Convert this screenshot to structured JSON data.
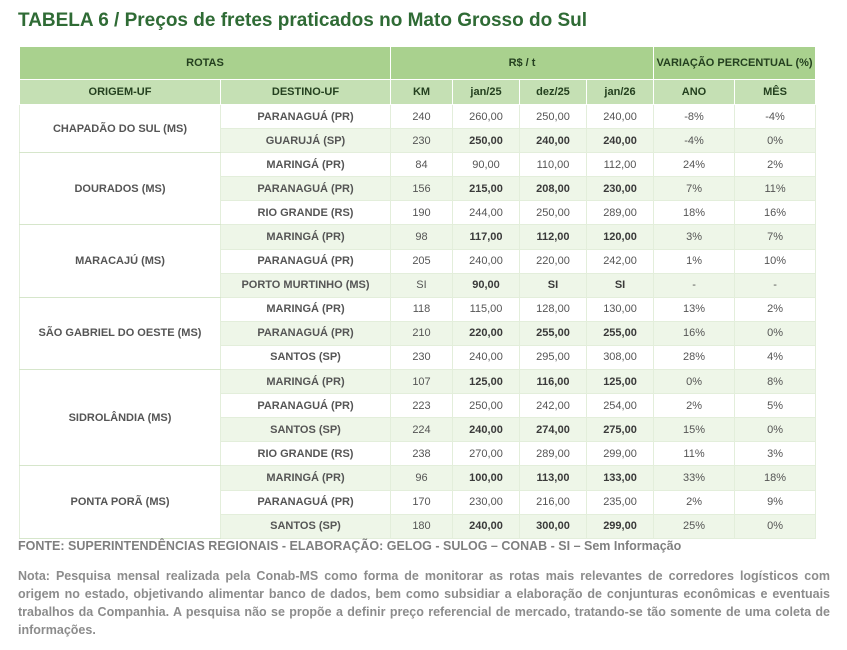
{
  "title": "TABELA 6 / Preços de fretes praticados no Mato Grosso do Sul",
  "header": {
    "rotas": "ROTAS",
    "rs_t": "R$ / t",
    "variacao": "VARIAÇÃO PERCENTUAL (%)",
    "columns": [
      "ORIGEM-UF",
      "DESTINO-UF",
      "KM",
      "jan/25",
      "dez/25",
      "jan/26",
      "ANO",
      "MÊS"
    ]
  },
  "groups": [
    {
      "origem": "CHAPADÃO DO SUL (MS)",
      "rows": [
        {
          "destino": "PARANAGUÁ (PR)",
          "km": "240",
          "jan25": "260,00",
          "dez25": "250,00",
          "jan26": "240,00",
          "ano": "-8%",
          "mes": "-4%"
        },
        {
          "destino": "GUARUJÁ (SP)",
          "km": "230",
          "jan25": "250,00",
          "dez25": "240,00",
          "jan26": "240,00",
          "ano": "-4%",
          "mes": "0%"
        }
      ]
    },
    {
      "origem": "DOURADOS (MS)",
      "rows": [
        {
          "destino": "MARINGÁ (PR)",
          "km": "84",
          "jan25": "90,00",
          "dez25": "110,00",
          "jan26": "112,00",
          "ano": "24%",
          "mes": "2%"
        },
        {
          "destino": "PARANAGUÁ (PR)",
          "km": "156",
          "jan25": "215,00",
          "dez25": "208,00",
          "jan26": "230,00",
          "ano": "7%",
          "mes": "11%"
        },
        {
          "destino": "RIO GRANDE (RS)",
          "km": "190",
          "jan25": "244,00",
          "dez25": "250,00",
          "jan26": "289,00",
          "ano": "18%",
          "mes": "16%"
        }
      ]
    },
    {
      "origem": "MARACAJÚ (MS)",
      "rows": [
        {
          "destino": "MARINGÁ (PR)",
          "km": "98",
          "jan25": "117,00",
          "dez25": "112,00",
          "jan26": "120,00",
          "ano": "3%",
          "mes": "7%"
        },
        {
          "destino": "PARANAGUÁ (PR)",
          "km": "205",
          "jan25": "240,00",
          "dez25": "220,00",
          "jan26": "242,00",
          "ano": "1%",
          "mes": "10%"
        },
        {
          "destino": "PORTO MURTINHO (MS)",
          "km": "SI",
          "jan25": "90,00",
          "dez25": "SI",
          "jan26": "SI",
          "ano": "-",
          "mes": "-"
        }
      ]
    },
    {
      "origem": "SÃO GABRIEL DO OESTE (MS)",
      "rows": [
        {
          "destino": "MARINGÁ (PR)",
          "km": "118",
          "jan25": "115,00",
          "dez25": "128,00",
          "jan26": "130,00",
          "ano": "13%",
          "mes": "2%"
        },
        {
          "destino": "PARANAGUÁ (PR)",
          "km": "210",
          "jan25": "220,00",
          "dez25": "255,00",
          "jan26": "255,00",
          "ano": "16%",
          "mes": "0%"
        },
        {
          "destino": "SANTOS (SP)",
          "km": "230",
          "jan25": "240,00",
          "dez25": "295,00",
          "jan26": "308,00",
          "ano": "28%",
          "mes": "4%"
        }
      ]
    },
    {
      "origem": "SIDROLÂNDIA (MS)",
      "rows": [
        {
          "destino": "MARINGÁ (PR)",
          "km": "107",
          "jan25": "125,00",
          "dez25": "116,00",
          "jan26": "125,00",
          "ano": "0%",
          "mes": "8%"
        },
        {
          "destino": "PARANAGUÁ (PR)",
          "km": "223",
          "jan25": "250,00",
          "dez25": "242,00",
          "jan26": "254,00",
          "ano": "2%",
          "mes": "5%"
        },
        {
          "destino": "SANTOS (SP)",
          "km": "224",
          "jan25": "240,00",
          "dez25": "274,00",
          "jan26": "275,00",
          "ano": "15%",
          "mes": "0%"
        },
        {
          "destino": "RIO GRANDE (RS)",
          "km": "238",
          "jan25": "270,00",
          "dez25": "289,00",
          "jan26": "299,00",
          "ano": "11%",
          "mes": "3%"
        }
      ]
    },
    {
      "origem": "PONTA PORÃ (MS)",
      "rows": [
        {
          "destino": "MARINGÁ (PR)",
          "km": "96",
          "jan25": "100,00",
          "dez25": "113,00",
          "jan26": "133,00",
          "ano": "33%",
          "mes": "18%"
        },
        {
          "destino": "PARANAGUÁ (PR)",
          "km": "170",
          "jan25": "230,00",
          "dez25": "216,00",
          "jan26": "235,00",
          "ano": "2%",
          "mes": "9%"
        },
        {
          "destino": "SANTOS (SP)",
          "km": "180",
          "jan25": "240,00",
          "dez25": "300,00",
          "jan26": "299,00",
          "ano": "25%",
          "mes": "0%"
        }
      ]
    }
  ],
  "fonte": "FONTE: SUPERINTENDÊNCIAS REGIONAIS - ELABORAÇÃO: GELOG - SULOG – CONAB - SI – Sem Informação",
  "nota": "Nota: Pesquisa mensal realizada pela Conab-MS como forma de monitorar as rotas mais relevantes de corredores logísticos com origem no estado, objetivando alimentar banco de dados, bem como subsidiar a elaboração de conjunturas econômicas e eventuais trabalhos da Companhia. A pesquisa não se propõe a definir preço referencial de mercado, tratando-se tão somente de uma coleta de informações.",
  "colors": {
    "title": "#2f6b35",
    "header": "#a9d18e",
    "subheader": "#c5e0b4",
    "alt_row": "#eef6e8"
  }
}
